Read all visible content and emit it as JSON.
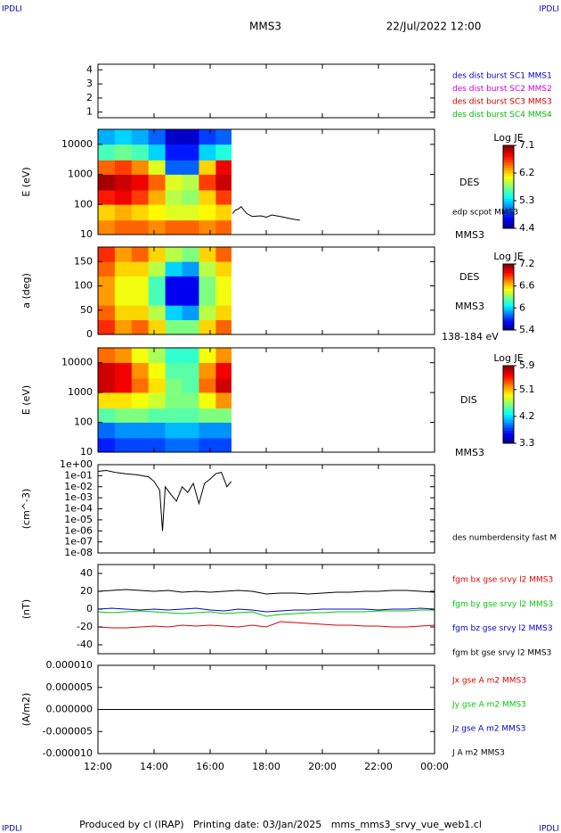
{
  "header": {
    "corner": "IPDLI",
    "title": "MMS3",
    "date": "22/Jul/2022 12:00",
    "footer": "Produced by cl (IRAP)   Printing date: 03/Jan/2025   mms_mms3_srvy_vue_web1.cl"
  },
  "chart_data": [
    {
      "type": "line",
      "ylim": [
        0.6,
        4.4
      ],
      "yticks": [
        1,
        2,
        3,
        4
      ],
      "labels": [
        {
          "text": "des dist burst SC1 MMS1",
          "color": "#0000cc"
        },
        {
          "text": "des dist burst SC2 MMS2",
          "color": "#cc00cc"
        },
        {
          "text": "des dist burst SC3 MMS3",
          "color": "#cc0000"
        },
        {
          "text": "des dist burst SC4 MMS4",
          "color": "#00bb00"
        }
      ]
    },
    {
      "type": "spectrogram",
      "ylabel": "E (eV)",
      "log": true,
      "ylim": [
        10,
        31623
      ],
      "yticks": [
        10,
        100,
        1000,
        10000
      ],
      "x": [
        12.0,
        12.6,
        13.2,
        13.8,
        14.4,
        15.0,
        15.6,
        16.2,
        16.75
      ],
      "y": [
        10,
        30,
        100,
        300,
        1000,
        3000,
        10000,
        31623
      ],
      "values": [
        [
          6.4,
          6.5,
          6.5,
          6.4,
          6.5,
          6.5,
          6.4,
          6.5
        ],
        [
          6.2,
          6.3,
          6.2,
          6.1,
          6.0,
          6.0,
          6.1,
          6.2
        ],
        [
          6.7,
          6.8,
          6.6,
          6.3,
          5.9,
          5.8,
          6.2,
          6.6
        ],
        [
          7.0,
          6.9,
          6.8,
          6.5,
          6.0,
          5.9,
          6.6,
          6.9
        ],
        [
          6.5,
          6.6,
          6.4,
          6.0,
          5.0,
          5.0,
          6.2,
          6.8
        ],
        [
          5.6,
          5.7,
          5.6,
          5.3,
          4.8,
          4.8,
          5.3,
          5.5
        ],
        [
          5.2,
          5.3,
          5.2,
          5.0,
          4.6,
          4.6,
          4.9,
          5.0
        ]
      ],
      "clim": [
        4.4,
        7.1
      ],
      "cticks": [
        4.4,
        5.3,
        6.2,
        7.1
      ],
      "clabel": "Log JE",
      "instrument": "DES",
      "probe": "MMS3",
      "series": [
        {
          "name": "edp scpot MMS3",
          "color": "#000000",
          "x": [
            16.8,
            16.9,
            17.0,
            17.1,
            17.3,
            17.5,
            17.8,
            18.0,
            18.2,
            18.5,
            18.8,
            19.0,
            19.2
          ],
          "values": [
            50,
            65,
            70,
            85,
            50,
            40,
            42,
            38,
            45,
            40,
            35,
            32,
            30
          ]
        }
      ]
    },
    {
      "type": "spectrogram",
      "ylabel": "a (deg)",
      "log": false,
      "ylim": [
        0,
        180
      ],
      "yticks": [
        0,
        50,
        100,
        150
      ],
      "x": [
        12.0,
        12.6,
        13.2,
        13.8,
        14.4,
        15.0,
        15.6,
        16.2,
        16.75
      ],
      "y": [
        0,
        30,
        60,
        90,
        120,
        150,
        180
      ],
      "values": [
        [
          6.9,
          6.7,
          6.8,
          6.6,
          6.3,
          6.3,
          6.6,
          6.8
        ],
        [
          6.8,
          6.6,
          6.6,
          6.4,
          6.0,
          5.9,
          6.4,
          6.6
        ],
        [
          6.7,
          6.5,
          6.5,
          6.2,
          5.6,
          5.6,
          6.3,
          6.5
        ],
        [
          6.7,
          6.5,
          6.5,
          6.2,
          5.6,
          5.6,
          6.3,
          6.5
        ],
        [
          6.8,
          6.6,
          6.6,
          6.4,
          6.0,
          5.9,
          6.4,
          6.6
        ],
        [
          6.9,
          6.7,
          6.8,
          6.6,
          6.4,
          6.3,
          6.6,
          6.8
        ]
      ],
      "clim": [
        5.4,
        7.2
      ],
      "cticks": [
        5.4,
        6.0,
        6.6,
        7.2
      ],
      "clabel": "Log JE",
      "instrument": "DES",
      "probe": "MMS3",
      "energy": "138-184 eV"
    },
    {
      "type": "spectrogram",
      "ylabel": "E (eV)",
      "log": true,
      "ylim": [
        10,
        31623
      ],
      "yticks": [
        10,
        100,
        1000,
        10000
      ],
      "x": [
        12.0,
        12.6,
        13.2,
        13.8,
        14.4,
        15.0,
        15.6,
        16.2,
        16.75
      ],
      "y": [
        10,
        30,
        100,
        300,
        1000,
        3000,
        10000,
        31623
      ],
      "values": [
        [
          3.7,
          3.8,
          3.8,
          3.8,
          3.9,
          3.9,
          3.8,
          3.8
        ],
        [
          3.9,
          4.0,
          4.0,
          4.0,
          4.1,
          4.1,
          4.0,
          4.0
        ],
        [
          4.5,
          4.6,
          4.6,
          4.5,
          4.5,
          4.5,
          4.6,
          4.6
        ],
        [
          5.0,
          5.0,
          4.9,
          4.8,
          4.6,
          4.6,
          4.9,
          5.2
        ],
        [
          5.7,
          5.6,
          5.3,
          5.0,
          4.6,
          4.5,
          5.3,
          5.7
        ],
        [
          5.7,
          5.6,
          5.2,
          4.9,
          4.5,
          4.5,
          5.2,
          5.6
        ],
        [
          5.3,
          5.2,
          4.9,
          4.7,
          4.4,
          4.4,
          4.9,
          5.2
        ]
      ],
      "clim": [
        3.3,
        5.9
      ],
      "cticks": [
        3.3,
        4.2,
        5.1,
        5.9
      ],
      "clabel": "Log JE",
      "instrument": "DIS",
      "probe": "MMS3"
    },
    {
      "type": "line",
      "ylabel": "(cm^-3)",
      "log": true,
      "ylim": [
        1e-08,
        1
      ],
      "yticks": [
        {
          "value": 1,
          "label": "1e+00"
        },
        {
          "value": 0.1,
          "label": "1e-01"
        },
        {
          "value": 0.01,
          "label": "1e-02"
        },
        {
          "value": 0.001,
          "label": "1e-03"
        },
        {
          "value": 0.0001,
          "label": "1e-04"
        },
        {
          "value": 1e-05,
          "label": "1e-05"
        },
        {
          "value": 1e-06,
          "label": "1e-06"
        },
        {
          "value": 1e-07,
          "label": "1e-07"
        },
        {
          "value": 1e-08,
          "label": "1e-08"
        }
      ],
      "series": [
        {
          "name": "des numberdensity fast M",
          "color": "#000000",
          "x": [
            12.0,
            12.3,
            12.6,
            13.0,
            13.4,
            13.8,
            14.0,
            14.2,
            14.3,
            14.4,
            14.6,
            14.8,
            15.0,
            15.2,
            15.4,
            15.6,
            15.8,
            16.0,
            16.2,
            16.4,
            16.6,
            16.75
          ],
          "values": [
            0.25,
            0.3,
            0.2,
            0.15,
            0.12,
            0.08,
            0.03,
            0.005,
            1e-06,
            0.01,
            0.002,
            0.0005,
            0.01,
            0.003,
            0.02,
            0.0003,
            0.02,
            0.05,
            0.15,
            0.2,
            0.01,
            0.03
          ]
        }
      ]
    },
    {
      "type": "line",
      "ylabel": "(nT)",
      "log": false,
      "ylim": [
        -50,
        50
      ],
      "yticks": [
        -40,
        -20,
        0,
        20,
        40
      ],
      "series": [
        {
          "name": "fgm bx gse srvy l2 MMS3",
          "color": "#dd0000",
          "x": [
            12,
            12.5,
            13,
            13.5,
            14,
            14.5,
            15,
            15.5,
            16,
            16.5,
            17,
            17.5,
            18,
            18.5,
            19,
            19.5,
            20,
            20.5,
            21,
            21.5,
            22,
            22.5,
            23,
            23.5,
            24
          ],
          "values": [
            -20,
            -21,
            -21,
            -20,
            -19,
            -20,
            -18,
            -19,
            -18,
            -19,
            -20,
            -18,
            -20,
            -14,
            -15,
            -16,
            -17,
            -18,
            -18,
            -19,
            -19,
            -20,
            -20,
            -19,
            -18
          ]
        },
        {
          "name": "fgm by gse srvy l2 MMS3",
          "color": "#00cc00",
          "x": [
            12,
            12.5,
            13,
            13.5,
            14,
            14.5,
            15,
            15.5,
            16,
            16.5,
            17,
            17.5,
            18,
            18.5,
            19,
            19.5,
            20,
            20.5,
            21,
            21.5,
            22,
            22.5,
            23,
            23.5,
            24
          ],
          "values": [
            -3,
            -4,
            -3,
            -2,
            -3,
            -4,
            -5,
            -4,
            -3,
            -5,
            -4,
            -3,
            -8,
            -6,
            -5,
            -4,
            -4,
            -3,
            -3,
            -3,
            -2,
            -2,
            -2,
            -1,
            -1
          ]
        },
        {
          "name": "fgm bz gse srvy l2 MMS3",
          "color": "#0000cc",
          "x": [
            12,
            12.5,
            13,
            13.5,
            14,
            14.5,
            15,
            15.5,
            16,
            16.5,
            17,
            17.5,
            18,
            18.5,
            19,
            19.5,
            20,
            20.5,
            21,
            21.5,
            22,
            22.5,
            23,
            23.5,
            24
          ],
          "values": [
            0,
            1,
            0,
            -1,
            0,
            -1,
            0,
            1,
            -1,
            -2,
            0,
            -1,
            -3,
            -2,
            -1,
            -1,
            0,
            0,
            0,
            0,
            -1,
            0,
            0,
            1,
            0
          ]
        },
        {
          "name": "fgm bt gse srvy l2 MMS3",
          "color": "#000000",
          "x": [
            12,
            12.5,
            13,
            13.5,
            14,
            14.5,
            15,
            15.5,
            16,
            16.5,
            17,
            17.5,
            18,
            18.5,
            19,
            19.5,
            20,
            20.5,
            21,
            21.5,
            22,
            22.5,
            23,
            23.5,
            24
          ],
          "values": [
            20,
            21,
            22,
            21,
            20,
            21,
            19,
            20,
            19,
            20,
            21,
            20,
            17,
            18,
            18,
            17,
            18,
            19,
            19,
            20,
            20,
            21,
            21,
            20,
            19
          ]
        }
      ]
    },
    {
      "type": "line",
      "ylabel": "(A/m2)",
      "log": false,
      "ylim": [
        -1e-05,
        1e-05
      ],
      "yticks": [
        {
          "value": 1e-05,
          "label": "0.000010"
        },
        {
          "value": 5e-06,
          "label": "0.000005"
        },
        {
          "value": 0,
          "label": "0.000000"
        },
        {
          "value": -5e-06,
          "label": "-0.000005"
        },
        {
          "value": -1e-05,
          "label": "-0.000010"
        }
      ],
      "xlim": [
        12,
        24
      ],
      "xticks": [
        {
          "value": 12,
          "label": "12:00"
        },
        {
          "value": 14,
          "label": "14:00"
        },
        {
          "value": 16,
          "label": "16:00"
        },
        {
          "value": 18,
          "label": "18:00"
        },
        {
          "value": 20,
          "label": "20:00"
        },
        {
          "value": 22,
          "label": "22:00"
        },
        {
          "value": 24,
          "label": "00:00"
        }
      ],
      "series": [
        {
          "name": "Jx gse A m2 MMS3",
          "color": "#dd0000",
          "x": [
            12,
            24
          ],
          "values": [
            0,
            0
          ]
        },
        {
          "name": "Jy gse A m2 MMS3",
          "color": "#00cc00",
          "x": [
            12,
            24
          ],
          "values": [
            0,
            0
          ]
        },
        {
          "name": "Jz gse A m2 MMS3",
          "color": "#0000cc",
          "x": [
            12,
            24
          ],
          "values": [
            0,
            0
          ]
        },
        {
          "name": "J A m2 MMS3",
          "color": "#000000",
          "x": [
            12,
            24
          ],
          "values": [
            0,
            0
          ]
        }
      ]
    }
  ]
}
